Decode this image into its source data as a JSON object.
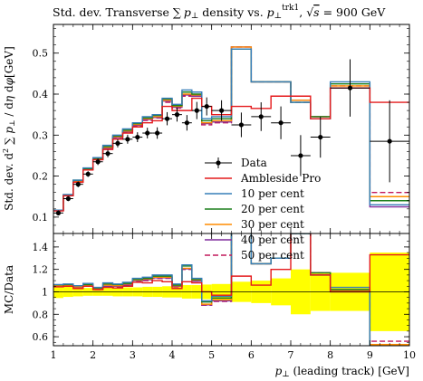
{
  "title": "Std. dev. Transverse ∑ p⊥ density vs. p⊥trk1, √s = 900 GeV",
  "title_parts": {
    "prefix": "Std. dev. Transverse ∑",
    "p": "p",
    "perp": "⊥",
    "mid": " density vs. ",
    "p2": "p",
    "perp2": "⊥",
    "sup": "trk1",
    "comma": ", ",
    "sqrt": "√",
    "s": "s",
    "eq": " = 900 GeV"
  },
  "colors": {
    "data": "#000000",
    "ambleside": "#e41a1c",
    "p10": "#377eb8",
    "p20": "#1b7f1b",
    "p30": "#ff8c00",
    "p40": "#7f2a9c",
    "p50": "#c2185b",
    "band": "#ffff00"
  },
  "chart_data": [
    {
      "type": "line",
      "panel": "main",
      "ylabel": "Std. dev. d² ∑ p⊥ / dη dφ [GeV]",
      "ylim": [
        0.06,
        0.57
      ],
      "xlim": [
        1,
        10
      ],
      "yticks": [
        "0.1",
        "0.2",
        "0.3",
        "0.4",
        "0.5"
      ],
      "bin_edges": [
        1,
        1.25,
        1.5,
        1.75,
        2,
        2.25,
        2.5,
        2.75,
        3,
        3.25,
        3.5,
        3.75,
        4,
        4.25,
        4.5,
        4.75,
        5,
        5.5,
        6,
        6.5,
        7,
        7.5,
        8,
        9,
        10
      ],
      "data": {
        "name": "Data",
        "x": [
          1.125,
          1.375,
          1.625,
          1.875,
          2.125,
          2.375,
          2.625,
          2.875,
          3.125,
          3.375,
          3.625,
          3.875,
          4.125,
          4.375,
          4.625,
          4.875,
          5.25,
          5.75,
          6.25,
          6.75,
          7.25,
          7.75,
          8.5,
          9.5
        ],
        "y": [
          0.11,
          0.145,
          0.18,
          0.205,
          0.235,
          0.255,
          0.28,
          0.29,
          0.295,
          0.305,
          0.305,
          0.34,
          0.35,
          0.33,
          0.36,
          0.37,
          0.36,
          0.325,
          0.345,
          0.33,
          0.25,
          0.295,
          0.415,
          0.285
        ],
        "yerr": [
          0.006,
          0.006,
          0.007,
          0.007,
          0.008,
          0.009,
          0.01,
          0.011,
          0.012,
          0.013,
          0.014,
          0.016,
          0.017,
          0.019,
          0.021,
          0.022,
          0.025,
          0.03,
          0.035,
          0.04,
          0.05,
          0.05,
          0.07,
          0.1
        ]
      },
      "series": [
        {
          "name": "Ambleside Pro",
          "color": "ambleside",
          "dash": false,
          "values": [
            0.115,
            0.152,
            0.185,
            0.215,
            0.24,
            0.265,
            0.29,
            0.305,
            0.32,
            0.33,
            0.335,
            0.37,
            0.36,
            0.36,
            0.39,
            0.37,
            0.35,
            0.37,
            0.365,
            0.395,
            0.395,
            0.34,
            0.415,
            0.38
          ]
        },
        {
          "name": "10 per cent",
          "color": "p10",
          "dash": false,
          "values": [
            0.117,
            0.155,
            0.19,
            0.22,
            0.245,
            0.275,
            0.3,
            0.315,
            0.33,
            0.345,
            0.35,
            0.39,
            0.375,
            0.41,
            0.405,
            0.34,
            0.345,
            0.51,
            0.43,
            0.43,
            0.38,
            0.34,
            0.43,
            0.13
          ]
        },
        {
          "name": "20 per cent",
          "color": "p20",
          "dash": false,
          "values": [
            0.117,
            0.154,
            0.19,
            0.218,
            0.243,
            0.272,
            0.298,
            0.312,
            0.328,
            0.342,
            0.348,
            0.388,
            0.372,
            0.405,
            0.4,
            0.335,
            0.34,
            0.51,
            0.43,
            0.43,
            0.38,
            0.345,
            0.425,
            0.14
          ]
        },
        {
          "name": "30 per cent",
          "color": "p30",
          "dash": false,
          "values": [
            0.116,
            0.153,
            0.188,
            0.217,
            0.242,
            0.27,
            0.296,
            0.31,
            0.326,
            0.34,
            0.345,
            0.385,
            0.37,
            0.4,
            0.398,
            0.33,
            0.335,
            0.515,
            0.43,
            0.43,
            0.385,
            0.345,
            0.42,
            0.15
          ]
        },
        {
          "name": "40 per cent",
          "color": "p40",
          "dash": false,
          "values": [
            0.116,
            0.152,
            0.187,
            0.216,
            0.241,
            0.268,
            0.294,
            0.308,
            0.324,
            0.338,
            0.343,
            0.383,
            0.368,
            0.398,
            0.395,
            0.328,
            0.332,
            0.515,
            0.43,
            0.43,
            0.385,
            0.345,
            0.415,
            0.125
          ]
        },
        {
          "name": "50 per cent",
          "color": "p50",
          "dash": true,
          "values": [
            0.116,
            0.152,
            0.186,
            0.215,
            0.24,
            0.267,
            0.293,
            0.307,
            0.322,
            0.336,
            0.342,
            0.38,
            0.366,
            0.395,
            0.395,
            0.325,
            0.33,
            0.515,
            0.43,
            0.43,
            0.38,
            0.345,
            0.42,
            0.16
          ]
        }
      ]
    },
    {
      "type": "line",
      "panel": "ratio",
      "xlabel": "p⊥ (leading track) [GeV]",
      "ylabel": "MC/Data",
      "ylim": [
        0.52,
        1.52
      ],
      "xlim": [
        1,
        10
      ],
      "yticks": [
        "0.6",
        "0.8",
        "1",
        "1.2",
        "1.4"
      ],
      "xticks": [
        "1",
        "2",
        "3",
        "4",
        "5",
        "6",
        "7",
        "8",
        "9",
        "10"
      ],
      "band": {
        "name": "Data uncertainty",
        "halfwidth": [
          0.055,
          0.045,
          0.04,
          0.035,
          0.035,
          0.035,
          0.04,
          0.04,
          0.04,
          0.045,
          0.045,
          0.05,
          0.05,
          0.06,
          0.06,
          0.065,
          0.07,
          0.09,
          0.1,
          0.12,
          0.2,
          0.17,
          0.17,
          0.35
        ]
      },
      "series": [
        {
          "name": "Ambleside Pro",
          "color": "ambleside",
          "dash": false,
          "values": [
            1.045,
            1.05,
            1.03,
            1.05,
            1.02,
            1.04,
            1.035,
            1.05,
            1.085,
            1.08,
            1.1,
            1.09,
            1.03,
            1.09,
            1.08,
            1.0,
            0.97,
            1.14,
            1.06,
            1.2,
            1.58,
            1.15,
            1.0,
            1.33
          ]
        },
        {
          "name": "10 per cent",
          "color": "p10",
          "dash": false,
          "values": [
            1.065,
            1.07,
            1.055,
            1.075,
            1.04,
            1.08,
            1.07,
            1.085,
            1.12,
            1.13,
            1.15,
            1.15,
            1.07,
            1.24,
            1.12,
            0.92,
            0.96,
            1.57,
            1.25,
            1.3,
            1.52,
            1.15,
            1.04,
            0.46
          ]
        },
        {
          "name": "20 per cent",
          "color": "p20",
          "dash": false,
          "values": [
            1.063,
            1.065,
            1.055,
            1.065,
            1.035,
            1.07,
            1.065,
            1.075,
            1.11,
            1.12,
            1.14,
            1.14,
            1.06,
            1.23,
            1.11,
            0.91,
            0.945,
            1.57,
            1.25,
            1.3,
            1.52,
            1.17,
            1.02,
            0.49
          ]
        },
        {
          "name": "30 per cent",
          "color": "p30",
          "dash": false,
          "values": [
            1.055,
            1.055,
            1.045,
            1.06,
            1.03,
            1.06,
            1.055,
            1.07,
            1.105,
            1.115,
            1.13,
            1.13,
            1.055,
            1.21,
            1.105,
            0.89,
            0.93,
            1.58,
            1.25,
            1.3,
            1.54,
            1.17,
            1.01,
            0.53
          ]
        },
        {
          "name": "40 per cent",
          "color": "p40",
          "dash": false,
          "values": [
            1.055,
            1.05,
            1.04,
            1.055,
            1.025,
            1.05,
            1.05,
            1.06,
            1.1,
            1.108,
            1.125,
            1.125,
            1.05,
            1.205,
            1.095,
            0.885,
            0.92,
            1.58,
            1.25,
            1.3,
            1.54,
            1.17,
            1.0,
            0.44
          ]
        },
        {
          "name": "50 per cent",
          "color": "p50",
          "dash": true,
          "values": [
            1.055,
            1.05,
            1.035,
            1.05,
            1.02,
            1.045,
            1.045,
            1.055,
            1.09,
            1.1,
            1.12,
            1.12,
            1.045,
            1.2,
            1.095,
            0.88,
            0.915,
            1.58,
            1.25,
            1.3,
            1.52,
            1.17,
            1.01,
            0.56
          ]
        }
      ]
    }
  ],
  "legend": {
    "placement": "right, inside main panel",
    "entries": [
      "Data",
      "Ambleside Pro",
      "10 per cent",
      "20 per cent",
      "30 per cent",
      "40 per cent",
      "50 per cent"
    ]
  }
}
